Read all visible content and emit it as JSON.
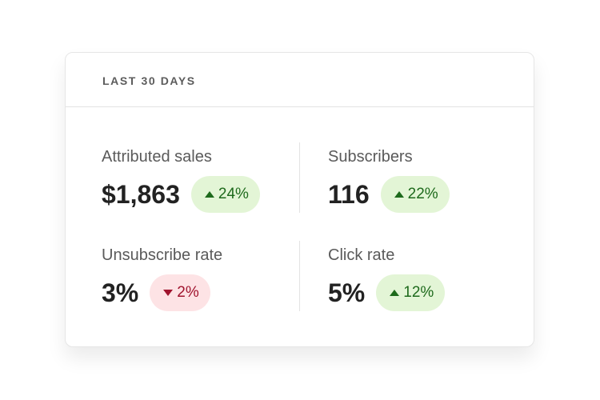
{
  "header": {
    "title": "LAST 30 DAYS"
  },
  "metrics": [
    {
      "label": "Attributed sales",
      "value": "$1,863",
      "change": "24%",
      "direction": "up"
    },
    {
      "label": "Subscribers",
      "value": "116",
      "change": "22%",
      "direction": "up"
    },
    {
      "label": "Unsubscribe rate",
      "value": "3%",
      "change": "2%",
      "direction": "down"
    },
    {
      "label": "Click rate",
      "value": "5%",
      "change": "12%",
      "direction": "up"
    }
  ]
}
